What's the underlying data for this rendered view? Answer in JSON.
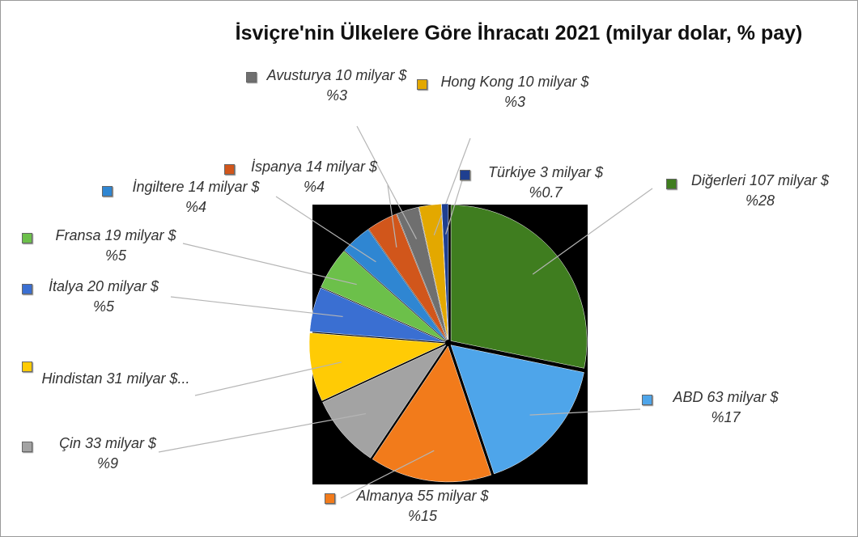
{
  "chart_data": {
    "type": "pie",
    "title": "İsviçre'nin Ülkelere Göre İhracatı 2021 (milyar dolar, % pay)",
    "categories": [
      "Diğerleri",
      "ABD",
      "Almanya",
      "Çin",
      "Hindistan",
      "İtalya",
      "Fransa",
      "İngiltere",
      "İspanya",
      "Avusturya",
      "Hong Kong",
      "Türkiye"
    ],
    "values": [
      107,
      63,
      55,
      33,
      31,
      20,
      19,
      14,
      14,
      10,
      10,
      3
    ],
    "value_labels": [
      "107 milyar $",
      "63 milyar $",
      "55 milyar $",
      "33 milyar $",
      "31 milyar $...",
      "20 milyar $",
      "19 milyar $",
      "14 milyar $",
      "14 milyar $",
      "10 milyar $",
      "10 milyar $",
      "3 milyar $"
    ],
    "percent_labels": [
      "%28",
      "%17",
      "%15",
      "%9",
      null,
      "%5",
      "%5",
      "%4",
      "%4",
      "%3",
      "%3",
      "%0.7"
    ],
    "colors": [
      "#3f7d1f",
      "#4ea5ea",
      "#f27b1b",
      "#a3a3a3",
      "#ffcb05",
      "#3a6fd2",
      "#6cc04a",
      "#2f86d2",
      "#d1561b",
      "#6f6f6f",
      "#e3a800",
      "#1f3f90"
    ]
  }
}
